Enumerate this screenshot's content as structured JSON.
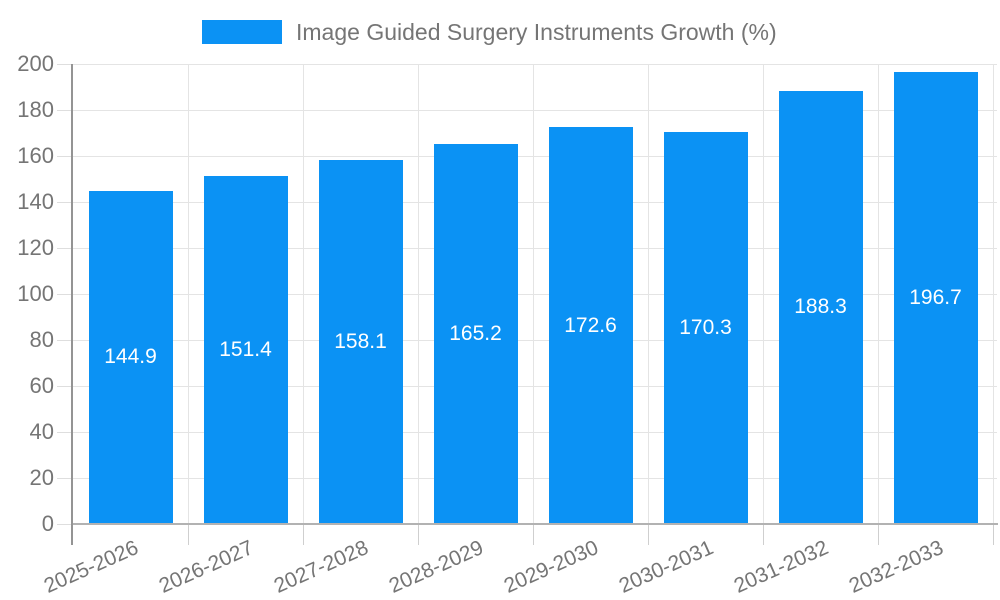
{
  "chart_data": {
    "type": "bar",
    "title": "Image Guided Surgery Instruments Growth (%)",
    "categories": [
      "2025-2026",
      "2026-2027",
      "2027-2028",
      "2028-2029",
      "2029-2030",
      "2030-2031",
      "2031-2032",
      "2032-2033"
    ],
    "values": [
      144.9,
      151.4,
      158.1,
      165.2,
      172.6,
      170.3,
      188.3,
      196.7
    ],
    "value_labels": [
      "144.9",
      "151.4",
      "158.1",
      "165.2",
      "172.6",
      "170.3",
      "188.3",
      "196.7"
    ],
    "xlabel": "",
    "ylabel": "",
    "ylim": [
      0,
      200
    ],
    "ytick_step": 20,
    "ytick_labels": [
      "0",
      "20",
      "40",
      "60",
      "80",
      "100",
      "120",
      "140",
      "160",
      "180",
      "200"
    ],
    "grid": true,
    "legend_position": "top",
    "colors": {
      "bar": "#0b92f4",
      "value_label": "#ffffff",
      "axis_text": "#757575",
      "legend_text": "#757575",
      "gridline": "#e4e4e4",
      "y_axis_line": "#949494",
      "x_axis_line": "#b2b2b2"
    }
  }
}
